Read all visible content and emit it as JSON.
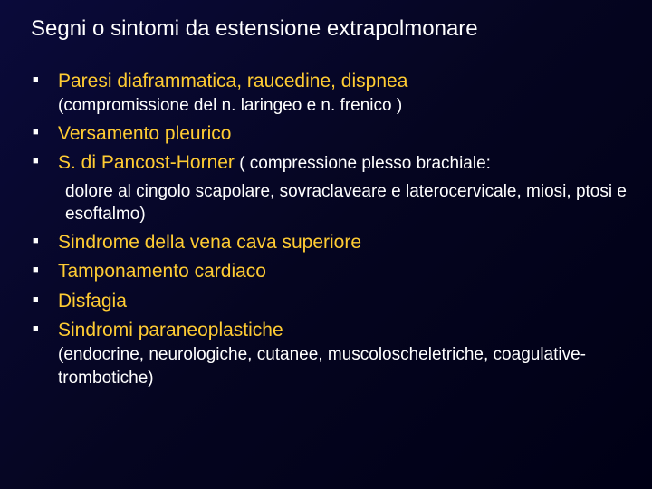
{
  "slide": {
    "title": "Segni o sintomi da estensione extrapolmonare",
    "items": [
      {
        "main": "Paresi diaframmatica, raucedine, dispnea",
        "sub": "(compromissione del n. laringeo e n. frenico )"
      },
      {
        "main": "Versamento pleurico"
      },
      {
        "main": "S. di Pancost-Horner",
        "inline": " ( compressione plesso brachiale:",
        "cont": "dolore al cingolo scapolare, sovraclaveare e laterocervicale, miosi, ptosi e esoftalmo)"
      },
      {
        "main": "Sindrome della vena cava superiore"
      },
      {
        "main": "Tamponamento cardiaco"
      },
      {
        "main": "Disfagia"
      },
      {
        "main": "Sindromi paraneoplastiche",
        "sub": "(endocrine, neurologiche, cutanee, muscoloscheletriche, coagulative-trombotiche)"
      }
    ]
  },
  "colors": {
    "background_start": "#0a0a3a",
    "background_end": "#000015",
    "title_color": "#ffffff",
    "main_text_color": "#ffcc33",
    "sub_text_color": "#ffffff",
    "bullet_color": "#ffffff"
  },
  "typography": {
    "title_fontsize": 24,
    "main_fontsize": 21,
    "sub_fontsize": 19,
    "font_family": "Verdana"
  }
}
